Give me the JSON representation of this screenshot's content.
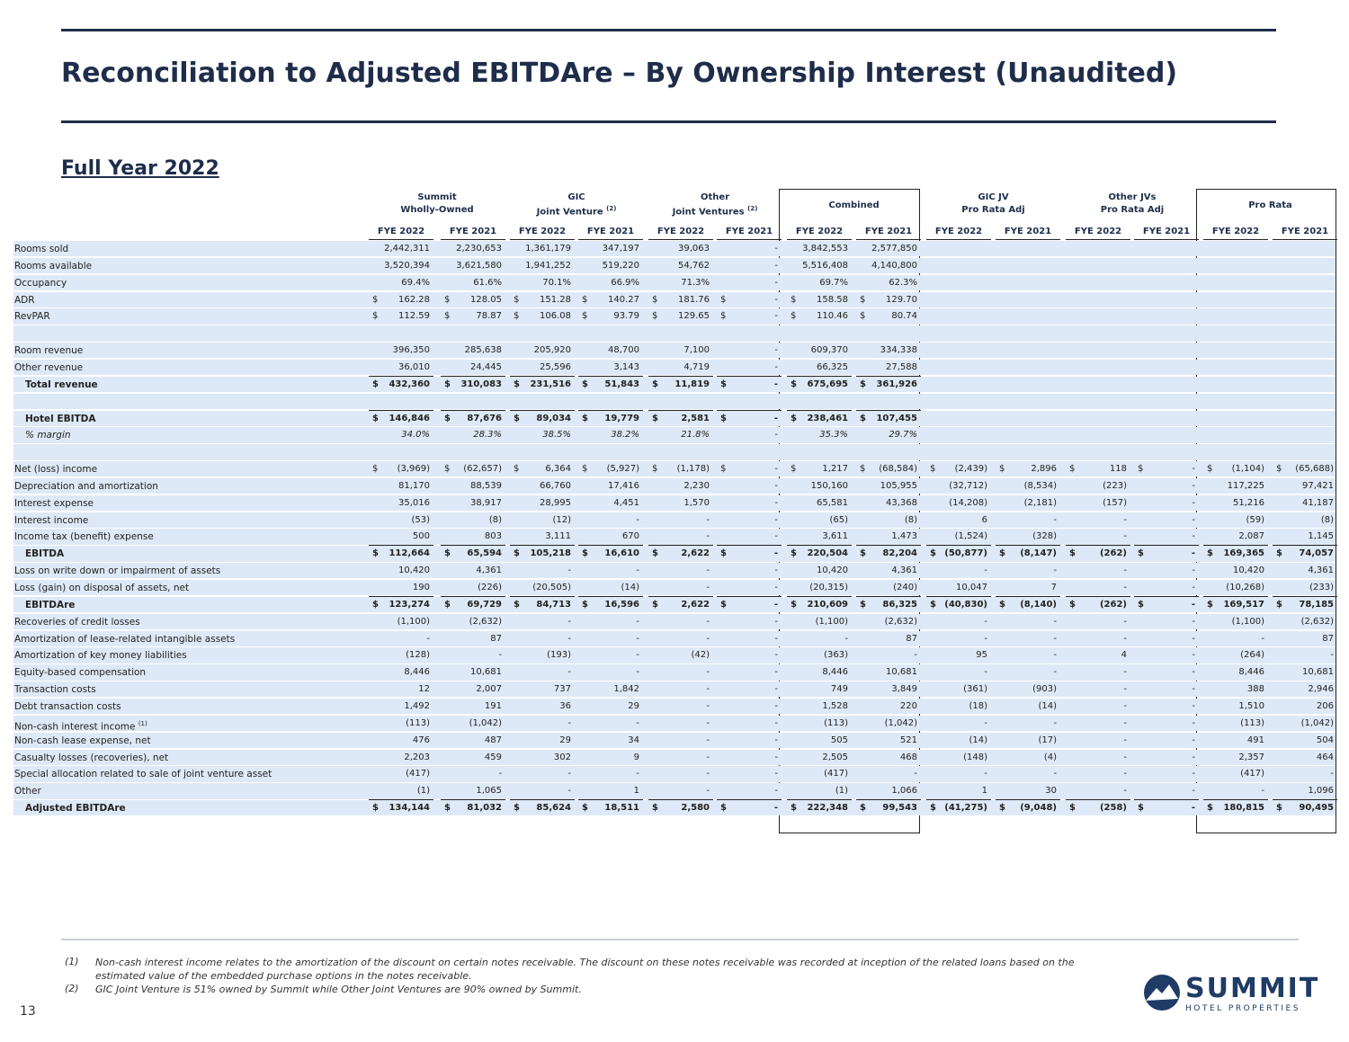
{
  "header": {
    "title": "Reconciliation to Adjusted EBITDAre – By Ownership Interest (Unaudited)",
    "subtitle": "Full Year 2022"
  },
  "table": {
    "groups": [
      {
        "line1": "Summit",
        "line2": "Wholly-Owned"
      },
      {
        "line1": "GIC",
        "line2": "Joint Venture",
        "note": "(2)"
      },
      {
        "line1": "Other",
        "line2": "Joint Ventures",
        "note": "(2)"
      },
      {
        "line1": "Combined"
      },
      {
        "line1": "GIC JV",
        "line2": "Pro Rata Adj"
      },
      {
        "line1": "Other JVs",
        "line2": "Pro Rata Adj"
      },
      {
        "line1": "Pro Rata"
      }
    ],
    "columns": [
      "FYE 2022",
      "FYE 2021",
      "FYE 2022",
      "FYE 2021",
      "FYE 2022",
      "FYE 2021",
      "FYE 2022",
      "FYE 2021",
      "FYE 2022",
      "FYE 2021",
      "FYE 2022",
      "FYE 2021",
      "FYE 2022",
      "FYE 2021"
    ],
    "rows": [
      {
        "label": "Rooms sold",
        "cells": [
          "2,442,311",
          "2,230,653",
          "1,361,179",
          "347,197",
          "39,063",
          "-",
          "3,842,553",
          "2,577,850",
          null,
          null,
          null,
          null,
          null,
          null
        ]
      },
      {
        "label": "Rooms available",
        "cells": [
          "3,520,394",
          "3,621,580",
          "1,941,252",
          "519,220",
          "54,762",
          "-",
          "5,516,408",
          "4,140,800",
          null,
          null,
          null,
          null,
          null,
          null
        ]
      },
      {
        "label": "Occupancy",
        "cells": [
          "69.4%",
          "61.6%",
          "70.1%",
          "66.9%",
          "71.3%",
          "-",
          "69.7%",
          "62.3%",
          null,
          null,
          null,
          null,
          null,
          null
        ]
      },
      {
        "label": "ADR",
        "cells": [
          [
            "$",
            "162.28"
          ],
          [
            "$",
            "128.05"
          ],
          [
            "$",
            "151.28"
          ],
          [
            "$",
            "140.27"
          ],
          [
            "$",
            "181.76"
          ],
          [
            "$",
            "-"
          ],
          [
            "$",
            "158.58"
          ],
          [
            "$",
            "129.70"
          ],
          null,
          null,
          null,
          null,
          null,
          null
        ]
      },
      {
        "label": "RevPAR",
        "cells": [
          [
            "$",
            "112.59"
          ],
          [
            "$",
            "78.87"
          ],
          [
            "$",
            "106.08"
          ],
          [
            "$",
            "93.79"
          ],
          [
            "$",
            "129.65"
          ],
          [
            "$",
            "-"
          ],
          [
            "$",
            "110.46"
          ],
          [
            "$",
            "80.74"
          ],
          null,
          null,
          null,
          null,
          null,
          null
        ]
      },
      null,
      {
        "label": "Room revenue",
        "cells": [
          "396,350",
          "285,638",
          "205,920",
          "48,700",
          "7,100",
          "-",
          "609,370",
          "334,338",
          null,
          null,
          null,
          null,
          null,
          null
        ]
      },
      {
        "label": "Other revenue",
        "cells": [
          "36,010",
          "24,445",
          "25,596",
          "3,143",
          "4,719",
          "-",
          "66,325",
          "27,588",
          null,
          null,
          null,
          null,
          null,
          null
        ]
      },
      {
        "label": "Total revenue",
        "bold": true,
        "cells": [
          [
            "$",
            "432,360"
          ],
          [
            "$",
            "310,083"
          ],
          [
            "$",
            "231,516"
          ],
          [
            "$",
            "51,843"
          ],
          [
            "$",
            "11,819"
          ],
          [
            "$",
            "-"
          ],
          [
            "$",
            "675,695"
          ],
          [
            "$",
            "361,926"
          ],
          null,
          null,
          null,
          null,
          null,
          null
        ]
      },
      null,
      {
        "label": "Hotel EBITDA",
        "bold": true,
        "cells": [
          [
            "$",
            "146,846"
          ],
          [
            "$",
            "87,676"
          ],
          [
            "$",
            "89,034"
          ],
          [
            "$",
            "19,779"
          ],
          [
            "$",
            "2,581"
          ],
          [
            "$",
            "-"
          ],
          [
            "$",
            "238,461"
          ],
          [
            "$",
            "107,455"
          ],
          null,
          null,
          null,
          null,
          null,
          null
        ]
      },
      {
        "label": "% margin",
        "italic": true,
        "cells": [
          "34.0%",
          "28.3%",
          "38.5%",
          "38.2%",
          "21.8%",
          "-",
          "35.3%",
          "29.7%",
          null,
          null,
          null,
          null,
          null,
          null
        ]
      },
      null,
      {
        "label": "Net (loss) income",
        "cells": [
          [
            "$",
            "(3,969)"
          ],
          [
            "$",
            "(62,657)"
          ],
          [
            "$",
            "6,364"
          ],
          [
            "$",
            "(5,927)"
          ],
          [
            "$",
            "(1,178)"
          ],
          [
            "$",
            "-"
          ],
          [
            "$",
            "1,217"
          ],
          [
            "$",
            "(68,584)"
          ],
          [
            "$",
            "(2,439)"
          ],
          [
            "$",
            "2,896"
          ],
          [
            "$",
            "118"
          ],
          [
            "$",
            "-"
          ],
          [
            "$",
            "(1,104)"
          ],
          [
            "$",
            "(65,688)"
          ]
        ]
      },
      {
        "label": "Depreciation and amortization",
        "cells": [
          "81,170",
          "88,539",
          "66,760",
          "17,416",
          "2,230",
          "-",
          "150,160",
          "105,955",
          "(32,712)",
          "(8,534)",
          "(223)",
          "-",
          "117,225",
          "97,421"
        ]
      },
      {
        "label": "Interest expense",
        "cells": [
          "35,016",
          "38,917",
          "28,995",
          "4,451",
          "1,570",
          "-",
          "65,581",
          "43,368",
          "(14,208)",
          "(2,181)",
          "(157)",
          "-",
          "51,216",
          "41,187"
        ]
      },
      {
        "label": "Interest income",
        "cells": [
          "(53)",
          "(8)",
          "(12)",
          "-",
          "-",
          "-",
          "(65)",
          "(8)",
          "6",
          "-",
          "-",
          "-",
          "(59)",
          "(8)"
        ]
      },
      {
        "label": "Income tax (benefit) expense",
        "cells": [
          "500",
          "803",
          "3,111",
          "670",
          "-",
          "-",
          "3,611",
          "1,473",
          "(1,524)",
          "(328)",
          "-",
          "-",
          "2,087",
          "1,145"
        ]
      },
      {
        "label": "EBITDA",
        "bold": true,
        "cells": [
          [
            "$",
            "112,664"
          ],
          [
            "$",
            "65,594"
          ],
          [
            "$",
            "105,218"
          ],
          [
            "$",
            "16,610"
          ],
          [
            "$",
            "2,622"
          ],
          [
            "$",
            "-"
          ],
          [
            "$",
            "220,504"
          ],
          [
            "$",
            "82,204"
          ],
          [
            "$",
            "(50,877)"
          ],
          [
            "$",
            "(8,147)"
          ],
          [
            "$",
            "(262)"
          ],
          [
            "$",
            "-"
          ],
          [
            "$",
            "169,365"
          ],
          [
            "$",
            "74,057"
          ]
        ]
      },
      {
        "label": "Loss on write down or impairment of assets",
        "cells": [
          "10,420",
          "4,361",
          "-",
          "-",
          "-",
          "-",
          "10,420",
          "4,361",
          "-",
          "-",
          "-",
          "-",
          "10,420",
          "4,361"
        ]
      },
      {
        "label": "Loss (gain) on disposal of assets, net",
        "cells": [
          "190",
          "(226)",
          "(20,505)",
          "(14)",
          "-",
          "-",
          "(20,315)",
          "(240)",
          "10,047",
          "7",
          "-",
          "-",
          "(10,268)",
          "(233)"
        ]
      },
      {
        "label": "EBITDAre",
        "bold": true,
        "cells": [
          [
            "$",
            "123,274"
          ],
          [
            "$",
            "69,729"
          ],
          [
            "$",
            "84,713"
          ],
          [
            "$",
            "16,596"
          ],
          [
            "$",
            "2,622"
          ],
          [
            "$",
            "-"
          ],
          [
            "$",
            "210,609"
          ],
          [
            "$",
            "86,325"
          ],
          [
            "$",
            "(40,830)"
          ],
          [
            "$",
            "(8,140)"
          ],
          [
            "$",
            "(262)"
          ],
          [
            "$",
            "-"
          ],
          [
            "$",
            "169,517"
          ],
          [
            "$",
            "78,185"
          ]
        ]
      },
      {
        "label": "Recoveries of credit losses",
        "cells": [
          "(1,100)",
          "(2,632)",
          "-",
          "-",
          "-",
          "-",
          "(1,100)",
          "(2,632)",
          "-",
          "-",
          "-",
          "-",
          "(1,100)",
          "(2,632)"
        ]
      },
      {
        "label": "Amortization of lease-related intangible assets",
        "cells": [
          "-",
          "87",
          "-",
          "-",
          "-",
          "-",
          "-",
          "87",
          "-",
          "-",
          "-",
          "-",
          "-",
          "87"
        ]
      },
      {
        "label": "Amortization of key money liabilities",
        "cells": [
          "(128)",
          "-",
          "(193)",
          "-",
          "(42)",
          "-",
          "(363)",
          "-",
          "95",
          "-",
          "4",
          "-",
          "(264)",
          "-"
        ]
      },
      {
        "label": "Equity-based compensation",
        "cells": [
          "8,446",
          "10,681",
          "-",
          "-",
          "-",
          "-",
          "8,446",
          "10,681",
          "-",
          "-",
          "-",
          "-",
          "8,446",
          "10,681"
        ]
      },
      {
        "label": "Transaction costs",
        "cells": [
          "12",
          "2,007",
          "737",
          "1,842",
          "-",
          "-",
          "749",
          "3,849",
          "(361)",
          "(903)",
          "-",
          "-",
          "388",
          "2,946"
        ]
      },
      {
        "label": "Debt transaction costs",
        "cells": [
          "1,492",
          "191",
          "36",
          "29",
          "-",
          "-",
          "1,528",
          "220",
          "(18)",
          "(14)",
          "-",
          "-",
          "1,510",
          "206"
        ]
      },
      {
        "label": "Non-cash interest income",
        "note": "(1)",
        "cells": [
          "(113)",
          "(1,042)",
          "-",
          "-",
          "-",
          "-",
          "(113)",
          "(1,042)",
          "-",
          "-",
          "-",
          "-",
          "(113)",
          "(1,042)"
        ]
      },
      {
        "label": "Non-cash lease expense, net",
        "cells": [
          "476",
          "487",
          "29",
          "34",
          "-",
          "-",
          "505",
          "521",
          "(14)",
          "(17)",
          "-",
          "-",
          "491",
          "504"
        ]
      },
      {
        "label": "Casualty losses (recoveries), net",
        "cells": [
          "2,203",
          "459",
          "302",
          "9",
          "-",
          "-",
          "2,505",
          "468",
          "(148)",
          "(4)",
          "-",
          "-",
          "2,357",
          "464"
        ]
      },
      {
        "label": "Special allocation related to sale of joint venture asset",
        "cells": [
          "(417)",
          "-",
          "-",
          "-",
          "-",
          "-",
          "(417)",
          "-",
          "-",
          "-",
          "-",
          "-",
          "(417)",
          "-"
        ]
      },
      {
        "label": "Other",
        "cells": [
          "(1)",
          "1,065",
          "-",
          "1",
          "-",
          "-",
          "(1)",
          "1,066",
          "1",
          "30",
          "-",
          "-",
          "-",
          "1,096"
        ]
      },
      {
        "label": "Adjusted EBITDAre",
        "bold": true,
        "cells": [
          [
            "$",
            "134,144"
          ],
          [
            "$",
            "81,032"
          ],
          [
            "$",
            "85,624"
          ],
          [
            "$",
            "18,511"
          ],
          [
            "$",
            "2,580"
          ],
          [
            "$",
            "-"
          ],
          [
            "$",
            "222,348"
          ],
          [
            "$",
            "99,543"
          ],
          [
            "$",
            "(41,275)"
          ],
          [
            "$",
            "(9,048)"
          ],
          [
            "$",
            "(258)"
          ],
          [
            "$",
            "-"
          ],
          [
            "$",
            "180,815"
          ],
          [
            "$",
            "90,495"
          ]
        ]
      }
    ]
  },
  "footnotes": [
    {
      "marker": "(1)",
      "text": "Non-cash interest income relates to the amortization of the discount on certain notes receivable. The discount on these notes receivable was recorded at inception of the related loans based on the estimated value of the embedded purchase options in the notes receivable."
    },
    {
      "marker": "(2)",
      "text": "GIC Joint Venture is 51% owned by Summit while Other Joint Ventures are 90% owned by Summit."
    }
  ],
  "page_number": "13",
  "logo": {
    "name": "SUMMIT",
    "tagline": "HOTEL PROPERTIES"
  }
}
